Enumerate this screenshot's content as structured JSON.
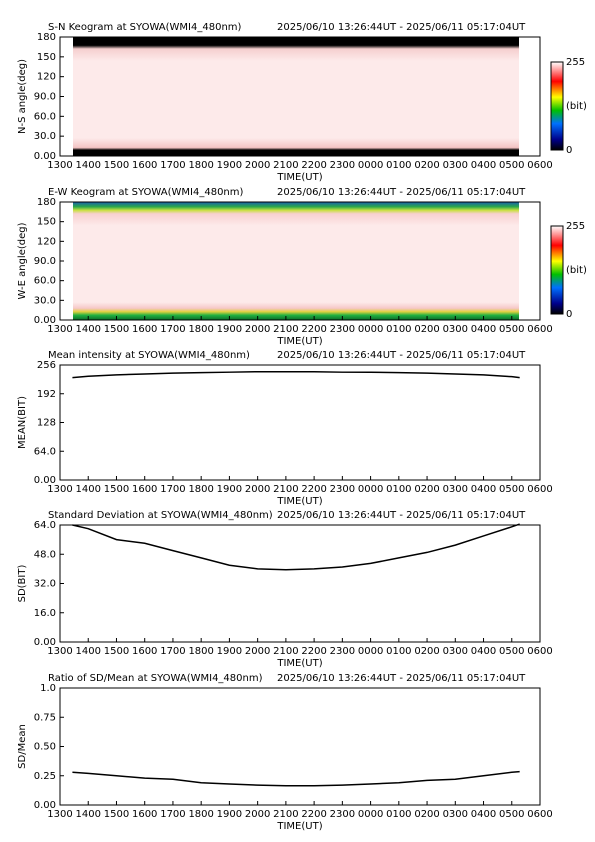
{
  "chart_data": [
    {
      "type": "keogram",
      "title": "S-N Keogram at SYOWA(WMI4_480nm)",
      "subtitle": "2025/06/10 13:26:44UT - 2025/06/11 05:17:04UT",
      "xlabel": "TIME(UT)",
      "ylabel": "N-S angle(deg)",
      "xlim": [
        13,
        30
      ],
      "xticks": [
        {
          "value": 13,
          "label": "1300"
        },
        {
          "value": 14,
          "label": "1400"
        },
        {
          "value": 15,
          "label": "1500"
        },
        {
          "value": 16,
          "label": "1600"
        },
        {
          "value": 17,
          "label": "1700"
        },
        {
          "value": 18,
          "label": "1800"
        },
        {
          "value": 19,
          "label": "1900"
        },
        {
          "value": 20,
          "label": "2000"
        },
        {
          "value": 21,
          "label": "2100"
        },
        {
          "value": 22,
          "label": "2200"
        },
        {
          "value": 23,
          "label": "2300"
        },
        {
          "value": 24,
          "label": "0000"
        },
        {
          "value": 25,
          "label": "0100"
        },
        {
          "value": 26,
          "label": "0200"
        },
        {
          "value": 27,
          "label": "0300"
        },
        {
          "value": 28,
          "label": "0400"
        },
        {
          "value": 29,
          "label": "0500"
        },
        {
          "value": 30,
          "label": "0600"
        }
      ],
      "ylim": [
        0,
        180
      ],
      "yticks": [
        {
          "value": 0,
          "label": "0.00"
        },
        {
          "value": 30,
          "label": "30.0"
        },
        {
          "value": 60,
          "label": "60.0"
        },
        {
          "value": 90,
          "label": "90.0"
        },
        120,
        150,
        180
      ],
      "colorbar": {
        "ticks": [
          0,
          255
        ],
        "label": "(bit)"
      }
    },
    {
      "type": "keogram",
      "title": "E-W Keogram at SYOWA(WMI4_480nm)",
      "subtitle": "2025/06/10 13:26:44UT - 2025/06/11 05:17:04UT",
      "xlabel": "TIME(UT)",
      "ylabel": "W-E angle(deg)",
      "xlim": [
        13,
        30
      ],
      "xticks": [
        {
          "value": 13,
          "label": "1300"
        },
        {
          "value": 14,
          "label": "1400"
        },
        {
          "value": 15,
          "label": "1500"
        },
        {
          "value": 16,
          "label": "1600"
        },
        {
          "value": 17,
          "label": "1700"
        },
        {
          "value": 18,
          "label": "1800"
        },
        {
          "value": 19,
          "label": "1900"
        },
        {
          "value": 20,
          "label": "2000"
        },
        {
          "value": 21,
          "label": "2100"
        },
        {
          "value": 22,
          "label": "2200"
        },
        {
          "value": 23,
          "label": "2300"
        },
        {
          "value": 24,
          "label": "0000"
        },
        {
          "value": 25,
          "label": "0100"
        },
        {
          "value": 26,
          "label": "0200"
        },
        {
          "value": 27,
          "label": "0300"
        },
        {
          "value": 28,
          "label": "0400"
        },
        {
          "value": 29,
          "label": "0500"
        },
        {
          "value": 30,
          "label": "0600"
        }
      ],
      "ylim": [
        0,
        180
      ],
      "yticks": [
        {
          "value": 0,
          "label": "0.00"
        },
        {
          "value": 30,
          "label": "30.0"
        },
        {
          "value": 60,
          "label": "60.0"
        },
        {
          "value": 90,
          "label": "90.0"
        },
        120,
        150,
        180
      ],
      "colorbar": {
        "ticks": [
          0,
          255
        ],
        "label": "(bit)"
      }
    },
    {
      "type": "line",
      "title": "Mean intensity at SYOWA(WMI4_480nm)",
      "subtitle": "2025/06/10 13:26:44UT - 2025/06/11 05:17:04UT",
      "xlabel": "TIME(UT)",
      "ylabel": "MEAN(BIT)",
      "xlim": [
        13,
        30
      ],
      "xticks": [
        {
          "value": 13,
          "label": "1300"
        },
        {
          "value": 14,
          "label": "1400"
        },
        {
          "value": 15,
          "label": "1500"
        },
        {
          "value": 16,
          "label": "1600"
        },
        {
          "value": 17,
          "label": "1700"
        },
        {
          "value": 18,
          "label": "1800"
        },
        {
          "value": 19,
          "label": "1900"
        },
        {
          "value": 20,
          "label": "2000"
        },
        {
          "value": 21,
          "label": "2100"
        },
        {
          "value": 22,
          "label": "2200"
        },
        {
          "value": 23,
          "label": "2300"
        },
        {
          "value": 24,
          "label": "0000"
        },
        {
          "value": 25,
          "label": "0100"
        },
        {
          "value": 26,
          "label": "0200"
        },
        {
          "value": 27,
          "label": "0300"
        },
        {
          "value": 28,
          "label": "0400"
        },
        {
          "value": 29,
          "label": "0500"
        },
        {
          "value": 30,
          "label": "0600"
        }
      ],
      "ylim": [
        0,
        256
      ],
      "yticks": [
        {
          "value": 0,
          "label": "0.00"
        },
        {
          "value": 64,
          "label": "64.0"
        },
        128,
        192,
        256
      ],
      "x": [
        13.44,
        14,
        15,
        16,
        17,
        18,
        19,
        20,
        21,
        22,
        23,
        24,
        25,
        26,
        27,
        28,
        29,
        29.28
      ],
      "values": [
        228,
        231,
        234,
        236,
        238,
        239,
        240,
        241,
        241,
        241,
        240,
        240,
        239,
        238,
        236,
        234,
        230,
        228
      ],
      "color": "#000000"
    },
    {
      "type": "line",
      "title": "Standard Deviation at SYOWA(WMI4_480nm)",
      "subtitle": "2025/06/10 13:26:44UT - 2025/06/11 05:17:04UT",
      "xlabel": "TIME(UT)",
      "ylabel": "SD(BIT)",
      "xlim": [
        13,
        30
      ],
      "xticks": [
        {
          "value": 13,
          "label": "1300"
        },
        {
          "value": 14,
          "label": "1400"
        },
        {
          "value": 15,
          "label": "1500"
        },
        {
          "value": 16,
          "label": "1600"
        },
        {
          "value": 17,
          "label": "1700"
        },
        {
          "value": 18,
          "label": "1800"
        },
        {
          "value": 19,
          "label": "1900"
        },
        {
          "value": 20,
          "label": "2000"
        },
        {
          "value": 21,
          "label": "2100"
        },
        {
          "value": 22,
          "label": "2200"
        },
        {
          "value": 23,
          "label": "2300"
        },
        {
          "value": 24,
          "label": "0000"
        },
        {
          "value": 25,
          "label": "0100"
        },
        {
          "value": 26,
          "label": "0200"
        },
        {
          "value": 27,
          "label": "0300"
        },
        {
          "value": 28,
          "label": "0400"
        },
        {
          "value": 29,
          "label": "0500"
        },
        {
          "value": 30,
          "label": "0600"
        }
      ],
      "ylim": [
        0,
        64
      ],
      "yticks": [
        {
          "value": 0,
          "label": "0.00"
        },
        {
          "value": 16,
          "label": "16.0"
        },
        {
          "value": 32,
          "label": "32.0"
        },
        {
          "value": 48,
          "label": "48.0"
        },
        {
          "value": 64,
          "label": "64.0"
        }
      ],
      "x": [
        13.44,
        14,
        15,
        16,
        17,
        18,
        19,
        20,
        21,
        22,
        23,
        24,
        25,
        26,
        27,
        28,
        29,
        29.28
      ],
      "values": [
        64,
        62,
        56,
        54,
        50,
        46,
        42,
        40,
        39.5,
        40,
        41,
        43,
        46,
        49,
        53,
        58,
        63,
        64.5
      ],
      "color": "#000000"
    },
    {
      "type": "line",
      "title": "Ratio of SD/Mean at SYOWA(WMI4_480nm)",
      "subtitle": "2025/06/10 13:26:44UT - 2025/06/11 05:17:04UT",
      "xlabel": "TIME(UT)",
      "ylabel": "SD/Mean",
      "xlim": [
        13,
        30
      ],
      "xticks": [
        {
          "value": 13,
          "label": "1300"
        },
        {
          "value": 14,
          "label": "1400"
        },
        {
          "value": 15,
          "label": "1500"
        },
        {
          "value": 16,
          "label": "1600"
        },
        {
          "value": 17,
          "label": "1700"
        },
        {
          "value": 18,
          "label": "1800"
        },
        {
          "value": 19,
          "label": "1900"
        },
        {
          "value": 20,
          "label": "2000"
        },
        {
          "value": 21,
          "label": "2100"
        },
        {
          "value": 22,
          "label": "2200"
        },
        {
          "value": 23,
          "label": "2300"
        },
        {
          "value": 24,
          "label": "0000"
        },
        {
          "value": 25,
          "label": "0100"
        },
        {
          "value": 26,
          "label": "0200"
        },
        {
          "value": 27,
          "label": "0300"
        },
        {
          "value": 28,
          "label": "0400"
        },
        {
          "value": 29,
          "label": "0500"
        },
        {
          "value": 30,
          "label": "0600"
        }
      ],
      "ylim": [
        0,
        1
      ],
      "yticks": [
        {
          "value": 0,
          "label": "0.00"
        },
        0.25,
        {
          "value": 0.5,
          "label": "0.50"
        },
        0.75,
        {
          "value": 1,
          "label": "1.0"
        }
      ],
      "x": [
        13.44,
        14,
        15,
        16,
        17,
        18,
        19,
        20,
        21,
        22,
        23,
        24,
        25,
        26,
        27,
        28,
        29,
        29.28
      ],
      "values": [
        0.28,
        0.27,
        0.25,
        0.23,
        0.22,
        0.19,
        0.18,
        0.17,
        0.165,
        0.165,
        0.17,
        0.18,
        0.19,
        0.21,
        0.22,
        0.25,
        0.28,
        0.285
      ],
      "color": "#000000"
    }
  ]
}
